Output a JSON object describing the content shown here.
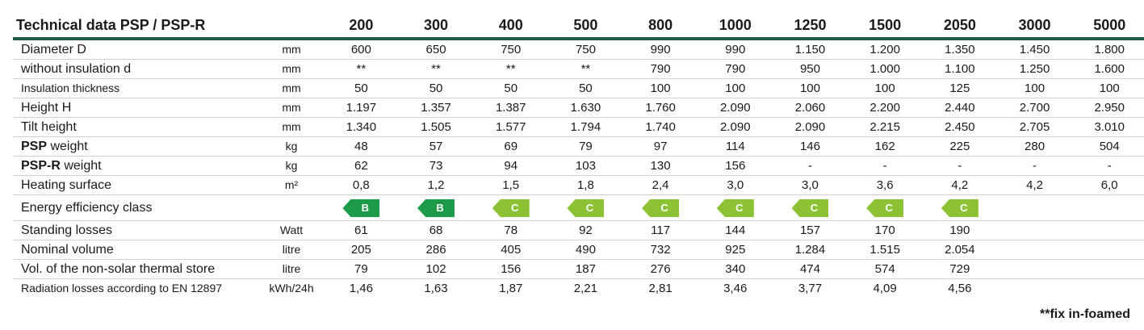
{
  "table": {
    "title": "Technical data PSP / PSP-R",
    "sizes": [
      "200",
      "300",
      "400",
      "500",
      "800",
      "1000",
      "1250",
      "1500",
      "2050",
      "3000",
      "5000"
    ],
    "rows": [
      {
        "label": "Diameter D",
        "unit": "mm",
        "values": [
          "600",
          "650",
          "750",
          "750",
          "990",
          "990",
          "1.150",
          "1.200",
          "1.350",
          "1.450",
          "1.800"
        ]
      },
      {
        "label": "without insulation d",
        "unit": "mm",
        "values": [
          "**",
          "**",
          "**",
          "**",
          "790",
          "790",
          "950",
          "1.000",
          "1.100",
          "1.250",
          "1.600"
        ]
      },
      {
        "label": "Insulation thickness",
        "unit": "mm",
        "values": [
          "50",
          "50",
          "50",
          "50",
          "100",
          "100",
          "100",
          "100",
          "125",
          "100",
          "100"
        ]
      },
      {
        "label": "Height H",
        "unit": "mm",
        "values": [
          "1.197",
          "1.357",
          "1.387",
          "1.630",
          "1.760",
          "2.090",
          "2.060",
          "2.200",
          "2.440",
          "2.700",
          "2.950"
        ]
      },
      {
        "label": "Tilt height",
        "unit": "mm",
        "values": [
          "1.340",
          "1.505",
          "1.577",
          "1.794",
          "1.740",
          "2.090",
          "2.090",
          "2.215",
          "2.450",
          "2.705",
          "3.010"
        ]
      },
      {
        "label_bold": "PSP",
        "label_rest": " weight",
        "unit": "kg",
        "values": [
          "48",
          "57",
          "69",
          "79",
          "97",
          "114",
          "146",
          "162",
          "225",
          "280",
          "504"
        ]
      },
      {
        "label_bold": "PSP-R",
        "label_rest": " weight",
        "unit": "kg",
        "values": [
          "62",
          "73",
          "94",
          "103",
          "130",
          "156",
          "-",
          "-",
          "-",
          "-",
          "-"
        ]
      },
      {
        "label": "Heating surface",
        "unit": "m²",
        "values": [
          "0,8",
          "1,2",
          "1,5",
          "1,8",
          "2,4",
          "3,0",
          "3,0",
          "3,6",
          "4,2",
          "4,2",
          "6,0"
        ]
      },
      {
        "label": "Energy efficiency class",
        "unit": "",
        "classes": [
          "B",
          "B",
          "C",
          "C",
          "C",
          "C",
          "C",
          "C",
          "C",
          "",
          ""
        ]
      },
      {
        "label": "Standing losses",
        "unit": "Watt",
        "values": [
          "61",
          "68",
          "78",
          "92",
          "117",
          "144",
          "157",
          "170",
          "190",
          "",
          ""
        ]
      },
      {
        "label": "Nominal volume",
        "unit": "litre",
        "values": [
          "205",
          "286",
          "405",
          "490",
          "732",
          "925",
          "1.284",
          "1.515",
          "2.054",
          "",
          ""
        ]
      },
      {
        "label": "Vol. of the non-solar thermal store",
        "unit": "litre",
        "values": [
          "79",
          "102",
          "156",
          "187",
          "276",
          "340",
          "474",
          "574",
          "729",
          "",
          ""
        ]
      },
      {
        "label": "Radiation losses according to EN 12897",
        "unit": "kWh/24h",
        "values": [
          "1,46",
          "1,63",
          "1,87",
          "2,21",
          "2,81",
          "3,46",
          "3,77",
          "4,09",
          "4,56",
          "",
          ""
        ]
      }
    ]
  },
  "colors": {
    "class_b": "#1e9b49",
    "class_c": "#8cc234",
    "header_rule": "#1f5c45"
  },
  "footnote": "**fix in-foamed"
}
